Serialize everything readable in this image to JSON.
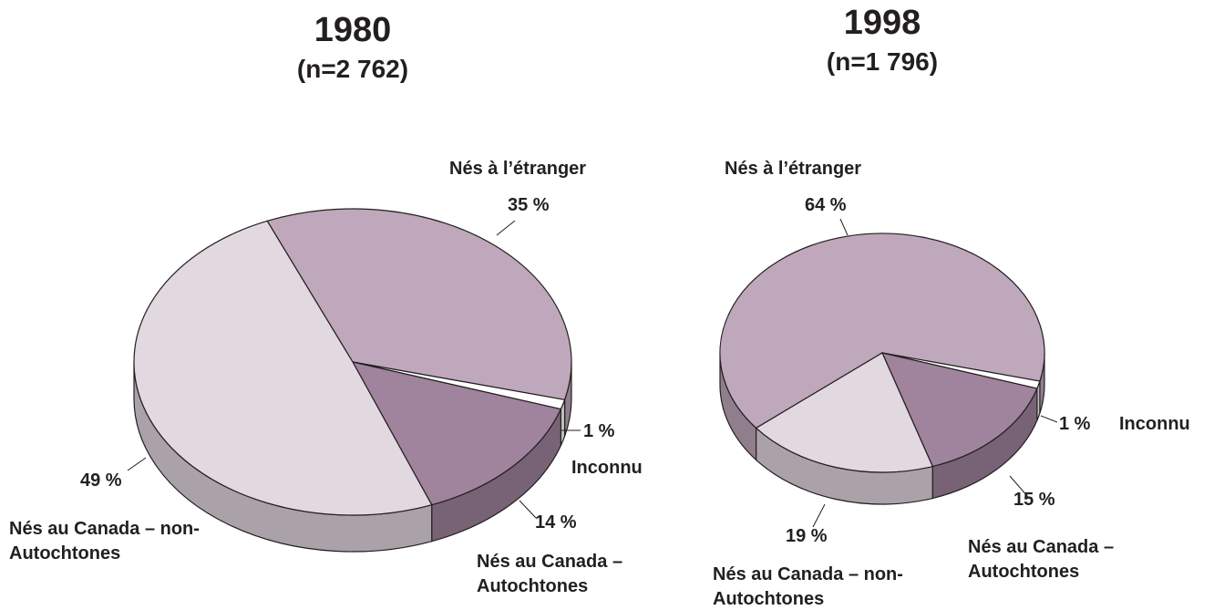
{
  "chart_data": [
    {
      "type": "pie",
      "title": "1980",
      "subtitle": "(n=2 762)",
      "categories": [
        "Nés à l’étranger",
        "Inconnu",
        "Nés au Canada – Autochtones",
        "Nés au Canada – non-Autochtones"
      ],
      "values": [
        35,
        1,
        14,
        49
      ],
      "value_labels": [
        "35 %",
        "1 %",
        "14 %",
        "49 %"
      ],
      "colors": [
        "#bfa8bb",
        "#ffffff",
        "#a0839c",
        "#e2d8e0"
      ]
    },
    {
      "type": "pie",
      "title": "1998",
      "subtitle": "(n=1 796)",
      "categories": [
        "Nés à l’étranger",
        "Inconnu",
        "Nés au Canada – Autochtones",
        "Nés au Canada – non-Autochtones"
      ],
      "values": [
        64,
        1,
        15,
        19
      ],
      "value_labels": [
        "64 %",
        "1 %",
        "15 %",
        "19 %"
      ],
      "colors": [
        "#bfa8bb",
        "#ffffff",
        "#a0839c",
        "#e2d8e0"
      ]
    }
  ]
}
